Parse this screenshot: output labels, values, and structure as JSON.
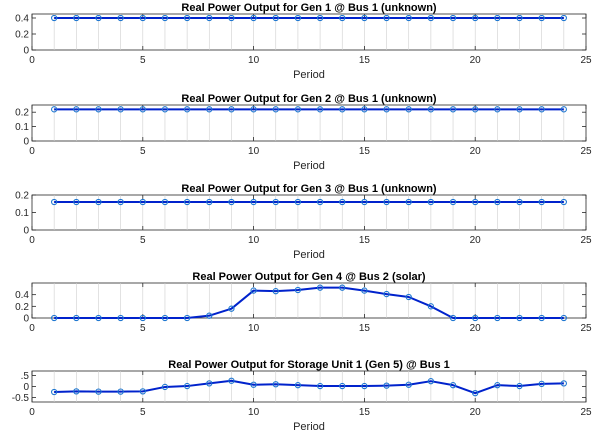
{
  "chart_data": [
    {
      "type": "line",
      "title": "Real Power Output for Gen 1 @ Bus 1 (unknown)",
      "xlabel": "Period",
      "ylabel": "",
      "xlim": [
        0,
        25
      ],
      "ylim": [
        0,
        0.45
      ],
      "xticks": [
        0,
        5,
        10,
        15,
        20,
        25
      ],
      "yticks": [
        0,
        0.2,
        0.4
      ],
      "x": [
        1,
        2,
        3,
        4,
        5,
        6,
        7,
        8,
        9,
        10,
        11,
        12,
        13,
        14,
        15,
        16,
        17,
        18,
        19,
        20,
        21,
        22,
        23,
        24
      ],
      "series": [
        {
          "values": [
            0.4,
            0.4,
            0.4,
            0.4,
            0.4,
            0.4,
            0.4,
            0.4,
            0.4,
            0.4,
            0.4,
            0.4,
            0.4,
            0.4,
            0.4,
            0.4,
            0.4,
            0.4,
            0.4,
            0.4,
            0.4,
            0.4,
            0.4,
            0.4
          ],
          "color": "#0022cc",
          "marker_color": "#1f77d0"
        }
      ]
    },
    {
      "type": "line",
      "title": "Real Power Output for Gen 2 @ Bus 1 (unknown)",
      "xlabel": "Period",
      "ylabel": "",
      "xlim": [
        0,
        25
      ],
      "ylim": [
        0,
        0.25
      ],
      "xticks": [
        0,
        5,
        10,
        15,
        20,
        25
      ],
      "yticks": [
        0,
        0.1,
        0.2
      ],
      "x": [
        1,
        2,
        3,
        4,
        5,
        6,
        7,
        8,
        9,
        10,
        11,
        12,
        13,
        14,
        15,
        16,
        17,
        18,
        19,
        20,
        21,
        22,
        23,
        24
      ],
      "series": [
        {
          "values": [
            0.22,
            0.22,
            0.22,
            0.22,
            0.22,
            0.22,
            0.22,
            0.22,
            0.22,
            0.22,
            0.22,
            0.22,
            0.22,
            0.22,
            0.22,
            0.22,
            0.22,
            0.22,
            0.22,
            0.22,
            0.22,
            0.22,
            0.22,
            0.22
          ],
          "color": "#0022cc",
          "marker_color": "#1f77d0"
        }
      ]
    },
    {
      "type": "line",
      "title": "Real Power Output for Gen 3 @ Bus 1 (unknown)",
      "xlabel": "Period",
      "ylabel": "",
      "xlim": [
        0,
        25
      ],
      "ylim": [
        0,
        0.2
      ],
      "xticks": [
        0,
        5,
        10,
        15,
        20,
        25
      ],
      "yticks": [
        0,
        0.1,
        0.2
      ],
      "x": [
        1,
        2,
        3,
        4,
        5,
        6,
        7,
        8,
        9,
        10,
        11,
        12,
        13,
        14,
        15,
        16,
        17,
        18,
        19,
        20,
        21,
        22,
        23,
        24
      ],
      "series": [
        {
          "values": [
            0.16,
            0.16,
            0.16,
            0.16,
            0.16,
            0.16,
            0.16,
            0.16,
            0.16,
            0.16,
            0.16,
            0.16,
            0.16,
            0.16,
            0.16,
            0.16,
            0.16,
            0.16,
            0.16,
            0.16,
            0.16,
            0.16,
            0.16,
            0.16
          ],
          "color": "#0022cc",
          "marker_color": "#1f77d0"
        }
      ]
    },
    {
      "type": "line",
      "title": "Real Power Output for Gen 4 @ Bus 2 (solar)",
      "xlabel": "",
      "ylabel": "",
      "xlim": [
        0,
        25
      ],
      "ylim": [
        0,
        0.6
      ],
      "xticks": [
        0,
        5,
        10,
        15,
        20,
        25
      ],
      "yticks": [
        0,
        0.2,
        0.4
      ],
      "x": [
        1,
        2,
        3,
        4,
        5,
        6,
        7,
        8,
        9,
        10,
        11,
        12,
        13,
        14,
        15,
        16,
        17,
        18,
        19,
        20,
        21,
        22,
        23,
        24
      ],
      "series": [
        {
          "values": [
            0,
            0,
            0,
            0,
            0,
            0,
            0,
            0.04,
            0.16,
            0.47,
            0.46,
            0.48,
            0.52,
            0.52,
            0.47,
            0.41,
            0.36,
            0.2,
            0,
            0,
            0,
            0,
            0,
            0
          ],
          "color": "#0022cc",
          "marker_color": "#1f77d0"
        }
      ]
    },
    {
      "type": "line",
      "title": "Real Power Output for Storage Unit 1 (Gen 5) @ Bus 1",
      "xlabel": "Period",
      "ylabel": "",
      "xlim": [
        0,
        25
      ],
      "ylim": [
        -0.7,
        0.7
      ],
      "xticks": [
        0,
        5,
        10,
        15,
        20,
        25
      ],
      "yticks": [
        -0.5,
        0,
        0.5
      ],
      "x": [
        1,
        2,
        3,
        4,
        5,
        6,
        7,
        8,
        9,
        10,
        11,
        12,
        13,
        14,
        15,
        16,
        17,
        18,
        19,
        20,
        21,
        22,
        23,
        24
      ],
      "series": [
        {
          "values": [
            -0.25,
            -0.22,
            -0.23,
            -0.23,
            -0.22,
            -0.02,
            0.02,
            0.14,
            0.26,
            0.08,
            0.1,
            0.06,
            0.02,
            0.02,
            0.02,
            0.04,
            0.08,
            0.24,
            0.06,
            -0.3,
            0.06,
            0.02,
            0.12,
            0.14
          ],
          "color": "#0022cc",
          "marker_color": "#1f77d0"
        }
      ]
    }
  ]
}
